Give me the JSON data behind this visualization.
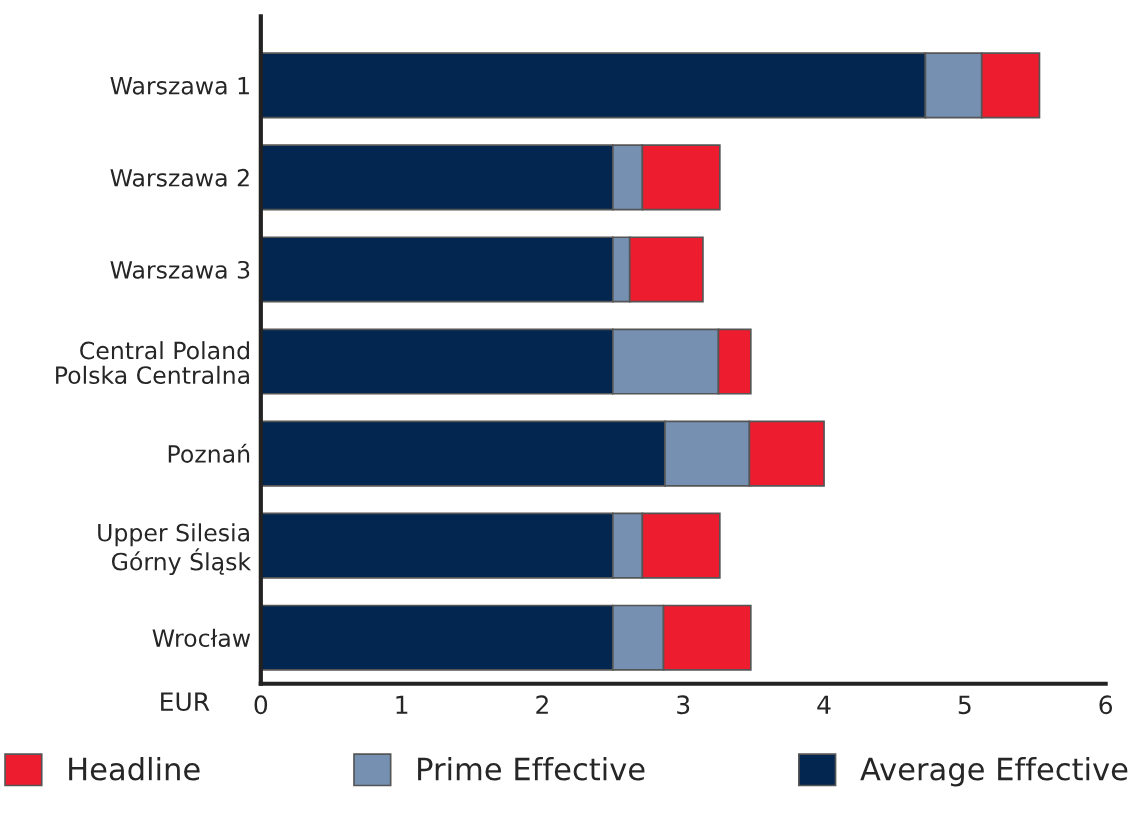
{
  "chart_data": {
    "type": "bar",
    "orientation": "horizontal",
    "stacked": true,
    "categories": [
      "Warszawa 1",
      "Warszawa 2",
      "Warszawa 3",
      "Central Poland\nPolska Centralna",
      "Poznań",
      "Upper Silesia\nGórny Śląsk",
      "Wrocław"
    ],
    "series": [
      {
        "name": "Average Effective",
        "color": "#02264f",
        "values": [
          4.72,
          2.5,
          2.5,
          2.5,
          2.87,
          2.5,
          2.5
        ]
      },
      {
        "name": "Prime Effective",
        "color": "#7590b0",
        "values": [
          0.4,
          0.21,
          0.12,
          0.75,
          0.6,
          0.21,
          0.36
        ]
      },
      {
        "name": "Headline",
        "color": "#ed1c2e",
        "values": [
          0.41,
          0.55,
          0.52,
          0.23,
          0.53,
          0.55,
          0.62
        ]
      }
    ],
    "xlabel": "EUR",
    "xlim": [
      0,
      6
    ],
    "xticks": [
      0,
      1,
      2,
      3,
      4,
      5,
      6
    ],
    "grid": false,
    "legend": "bottom"
  }
}
